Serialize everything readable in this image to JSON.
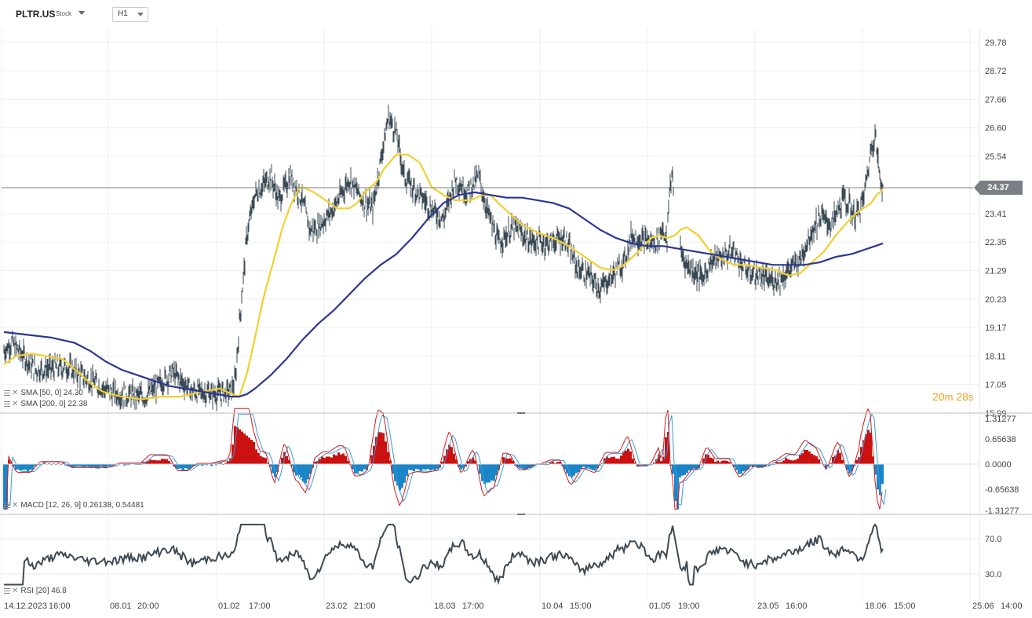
{
  "header": {
    "symbol": "PLTR.US",
    "instrument_type": "Stock",
    "timeframe": "H1"
  },
  "price_axis": [
    "29.78",
    "28.72",
    "27.66",
    "26.60",
    "25.54",
    "23.41",
    "22.35",
    "21.29",
    "20.23",
    "19.17",
    "18.11",
    "17.05",
    "15.99"
  ],
  "last_price": "24.37",
  "countdown": {
    "minutes": "20",
    "min_unit": "m",
    "seconds": "28",
    "sec_unit": "s"
  },
  "macd_axis": [
    "1.31277",
    "0.65638",
    "0.0000",
    "-0.65638",
    "-1.31277"
  ],
  "rsi_axis": [
    "70.0",
    "30.0"
  ],
  "time_axis": [
    "14.12.2023",
    "16:00",
    "08.01",
    "20:00",
    "01.02",
    "17:00",
    "23.02",
    "21:00",
    "18.03",
    "17:00",
    "10.04",
    "15:00",
    "01.05",
    "19:00",
    "23.05",
    "16:00",
    "18.06",
    "15:00",
    "25.06",
    "14:00"
  ],
  "legends": {
    "sma50": "SMA [50, 0] 24.30",
    "sma200": "SMA [200, 0] 22.38",
    "macd": "MACD [12, 26, 9] 0.26138, 0.54481",
    "rsi": "RSI [20] 46.8"
  },
  "colors": {
    "candles": "#3a4a55",
    "sma50": "#f2cf2f",
    "sma200": "#2c3692",
    "macd_pos": "#cc1111",
    "macd_neg": "#1a86c8",
    "rsi": "#3e4a54",
    "price_tag": "#7a7f86",
    "countdown": "#f0a020"
  },
  "chart_data": {
    "type": "line",
    "symbol": "PLTR.US",
    "timeframe": "H1",
    "x_ticks": [
      "14.12.2023 16:00",
      "08.01 20:00",
      "01.02 17:00",
      "23.02 21:00",
      "18.03 17:00",
      "10.04 15:00",
      "01.05 19:00",
      "23.05 16:00",
      "18.06 15:00",
      "25.06 14:00"
    ],
    "ylim": [
      15.99,
      30.3
    ],
    "last_price": 24.37,
    "series": [
      {
        "name": "SMA [50, 0] 24.30",
        "color": "#f2cf2f",
        "x": [
          0,
          15,
          35,
          55,
          75,
          95,
          110,
          125,
          135,
          150,
          175,
          200,
          225,
          255,
          275,
          290,
          300,
          310,
          320,
          330,
          345,
          355,
          365,
          375,
          380,
          395,
          410,
          425,
          440,
          450,
          460,
          475,
          485,
          500,
          515,
          530,
          540,
          545,
          560,
          575,
          595,
          610,
          620,
          630,
          645,
          660,
          680,
          700,
          720,
          740,
          760,
          775,
          790,
          805,
          815,
          825,
          835,
          845,
          855,
          862,
          870,
          885,
          900,
          915,
          930,
          945,
          965,
          985,
          1000,
          1015,
          1030,
          1045,
          1060,
          1075,
          1085,
          1095,
          1105,
          1112,
          1120
        ],
        "y": [
          17.8,
          18.1,
          18.2,
          18.1,
          18.0,
          17.5,
          17.1,
          16.8,
          16.7,
          16.6,
          16.5,
          16.6,
          16.6,
          16.8,
          16.9,
          16.7,
          16.6,
          17.5,
          18.8,
          20.2,
          21.8,
          22.9,
          23.7,
          24.3,
          24.4,
          24.2,
          23.9,
          23.6,
          23.6,
          23.8,
          24.2,
          24.6,
          25.1,
          25.6,
          25.6,
          25.3,
          24.7,
          24.4,
          24.1,
          23.9,
          23.9,
          24.1,
          24.1,
          23.8,
          23.4,
          23.0,
          22.7,
          22.5,
          22.2,
          21.8,
          21.4,
          21.3,
          21.5,
          21.9,
          22.2,
          22.5,
          22.6,
          22.5,
          22.6,
          22.8,
          22.9,
          22.6,
          22.0,
          21.7,
          21.5,
          21.5,
          21.4,
          21.3,
          21.1,
          21.2,
          21.6,
          22.0,
          22.6,
          23.1,
          23.4,
          23.6,
          23.8,
          24.1,
          24.3
        ]
      },
      {
        "name": "SMA [200, 0] 22.38",
        "color": "#2c3692",
        "x": [
          0,
          30,
          60,
          90,
          110,
          130,
          150,
          170,
          190,
          210,
          230,
          250,
          270,
          290,
          300,
          310,
          320,
          340,
          360,
          380,
          400,
          420,
          440,
          460,
          480,
          500,
          520,
          540,
          560,
          580,
          600,
          620,
          640,
          660,
          680,
          700,
          720,
          740,
          760,
          780,
          800,
          820,
          840,
          860,
          880,
          900,
          920,
          940,
          960,
          980,
          1000,
          1020,
          1040,
          1060,
          1080,
          1100,
          1110,
          1120
        ],
        "y": [
          19.0,
          18.9,
          18.8,
          18.6,
          18.3,
          17.9,
          17.6,
          17.4,
          17.2,
          17.0,
          16.9,
          16.8,
          16.7,
          16.6,
          16.6,
          16.7,
          16.9,
          17.4,
          18.0,
          18.7,
          19.3,
          19.8,
          20.4,
          21.0,
          21.5,
          21.9,
          22.5,
          23.2,
          23.8,
          24.1,
          24.2,
          24.1,
          24.0,
          24.0,
          23.9,
          23.8,
          23.6,
          23.2,
          22.8,
          22.5,
          22.3,
          22.2,
          22.2,
          22.1,
          22.0,
          21.9,
          21.8,
          21.7,
          21.6,
          21.5,
          21.5,
          21.5,
          21.6,
          21.8,
          21.9,
          22.1,
          22.2,
          22.3
        ]
      },
      {
        "name": "MACD",
        "color": "#cc1111",
        "x": [],
        "y": []
      },
      {
        "name": "RSI [20] 46.8",
        "color": "#3e4a54",
        "x": [],
        "y": []
      }
    ],
    "macd_ylim": [
      -1.31277,
      1.31277
    ],
    "rsi_ticks": [
      70.0,
      30.0
    ]
  }
}
